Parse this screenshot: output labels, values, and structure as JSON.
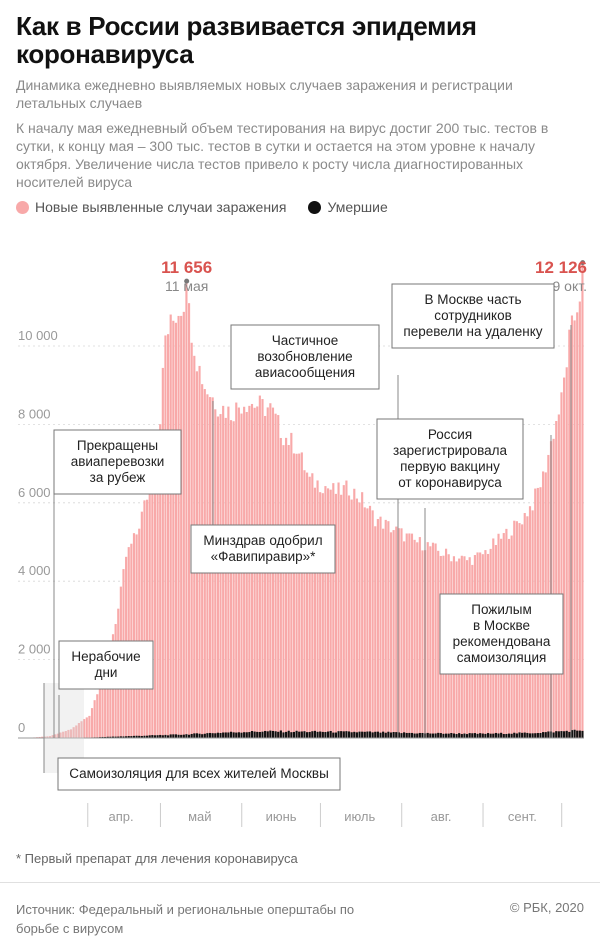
{
  "header": {
    "title": "Как в России развивается эпидемия коронавируса",
    "subtitle": "Динамика ежедневно выявляемых новых случаев заражения и регистрации летальных случаев",
    "note": "К началу мая ежедневный объем тестирования на вирус достиг 200 тыс. тестов в сутки, к концу мая – 300 тыс. тестов в сутки и остается на этом уровне к началу октября. Увеличение числа тестов привело к росту числа диагностированных носителей вируса"
  },
  "legend": {
    "cases_label": "Новые выявленные случаи заражения",
    "deaths_label": "Умершие"
  },
  "footer": {
    "footnote": "* Первый препарат для лечения коронавируса",
    "source": "Источник: Федеральный и региональные оперштабы по борьбе с вирусом",
    "copyright": "© РБК, 2020"
  },
  "colors": {
    "cases": "#f8a9a9",
    "deaths": "#111111",
    "highlight": "#d9534f"
  },
  "chart_data": {
    "type": "bar",
    "x_range": [
      "2020-03-12",
      "2020-10-09"
    ],
    "ylim": [
      0,
      12500
    ],
    "y_ticks": [
      {
        "value": 0,
        "label": "0"
      },
      {
        "value": 2000,
        "label": "2 000"
      },
      {
        "value": 4000,
        "label": "4 000"
      },
      {
        "value": 6000,
        "label": "6 000"
      },
      {
        "value": 8000,
        "label": "8 000"
      },
      {
        "value": 10000,
        "label": "10 000"
      }
    ],
    "month_labels": [
      {
        "date": "2020-04-16",
        "label": "апр."
      },
      {
        "date": "2020-05-16",
        "label": "май"
      },
      {
        "date": "2020-06-16",
        "label": "июнь"
      },
      {
        "date": "2020-07-16",
        "label": "июль"
      },
      {
        "date": "2020-08-16",
        "label": "авг."
      },
      {
        "date": "2020-09-16",
        "label": "сент."
      }
    ],
    "series": [
      {
        "name": "Новые выявленные случаи заражения",
        "values": [
          {
            "date": "2020-03-12",
            "value": 5
          },
          {
            "date": "2020-03-20",
            "value": 50
          },
          {
            "date": "2020-03-28",
            "value": 230
          },
          {
            "date": "2020-04-04",
            "value": 600
          },
          {
            "date": "2020-04-10",
            "value": 1800
          },
          {
            "date": "2020-04-15",
            "value": 3400
          },
          {
            "date": "2020-04-18",
            "value": 4800
          },
          {
            "date": "2020-04-22",
            "value": 5400
          },
          {
            "date": "2020-04-26",
            "value": 6400
          },
          {
            "date": "2020-04-30",
            "value": 7500
          },
          {
            "date": "2020-05-03",
            "value": 10600
          },
          {
            "date": "2020-05-07",
            "value": 11200
          },
          {
            "date": "2020-05-11",
            "value": 11656
          },
          {
            "date": "2020-05-15",
            "value": 10000
          },
          {
            "date": "2020-05-18",
            "value": 9300
          },
          {
            "date": "2020-05-23",
            "value": 8800
          },
          {
            "date": "2020-05-28",
            "value": 8600
          },
          {
            "date": "2020-06-02",
            "value": 8900
          },
          {
            "date": "2020-06-07",
            "value": 8800
          },
          {
            "date": "2020-06-12",
            "value": 8700
          },
          {
            "date": "2020-06-17",
            "value": 8000
          },
          {
            "date": "2020-06-22",
            "value": 7700
          },
          {
            "date": "2020-06-27",
            "value": 6800
          },
          {
            "date": "2020-07-02",
            "value": 6700
          },
          {
            "date": "2020-07-07",
            "value": 6500
          },
          {
            "date": "2020-07-12",
            "value": 6600
          },
          {
            "date": "2020-07-17",
            "value": 6300
          },
          {
            "date": "2020-07-22",
            "value": 5800
          },
          {
            "date": "2020-07-27",
            "value": 5600
          },
          {
            "date": "2020-08-01",
            "value": 5400
          },
          {
            "date": "2020-08-06",
            "value": 5200
          },
          {
            "date": "2020-08-11",
            "value": 5100
          },
          {
            "date": "2020-08-16",
            "value": 4900
          },
          {
            "date": "2020-08-21",
            "value": 4800
          },
          {
            "date": "2020-08-26",
            "value": 4700
          },
          {
            "date": "2020-08-31",
            "value": 4800
          },
          {
            "date": "2020-09-05",
            "value": 5100
          },
          {
            "date": "2020-09-10",
            "value": 5400
          },
          {
            "date": "2020-09-15",
            "value": 5700
          },
          {
            "date": "2020-09-20",
            "value": 6200
          },
          {
            "date": "2020-09-24",
            "value": 6900
          },
          {
            "date": "2020-09-28",
            "value": 8100
          },
          {
            "date": "2020-10-01",
            "value": 8900
          },
          {
            "date": "2020-10-04",
            "value": 10500
          },
          {
            "date": "2020-10-06",
            "value": 11100
          },
          {
            "date": "2020-10-09",
            "value": 12126
          }
        ]
      },
      {
        "name": "Умершие",
        "values": [
          {
            "date": "2020-03-12",
            "value": 0
          },
          {
            "date": "2020-04-01",
            "value": 5
          },
          {
            "date": "2020-04-20",
            "value": 50
          },
          {
            "date": "2020-05-10",
            "value": 90
          },
          {
            "date": "2020-05-25",
            "value": 140
          },
          {
            "date": "2020-06-10",
            "value": 170
          },
          {
            "date": "2020-07-01",
            "value": 160
          },
          {
            "date": "2020-07-20",
            "value": 150
          },
          {
            "date": "2020-08-10",
            "value": 120
          },
          {
            "date": "2020-09-01",
            "value": 110
          },
          {
            "date": "2020-09-20",
            "value": 130
          },
          {
            "date": "2020-10-09",
            "value": 200
          }
        ]
      }
    ],
    "peaks": [
      {
        "date": "2020-05-11",
        "value": 11656,
        "value_label": "11 656",
        "date_label": "11 мая"
      },
      {
        "date": "2020-10-09",
        "value": 12126,
        "value_label": "12 126",
        "date_label": "9 окт."
      }
    ],
    "annotations": [
      {
        "id": "flights",
        "date": "2020-03-27",
        "value": 7400,
        "text": "Прекращены авиаперевозки за рубеж"
      },
      {
        "id": "nonwork",
        "date": "2020-03-28",
        "value": 1150,
        "text": "Нерабочие дни"
      },
      {
        "id": "selfiso",
        "date": "2020-03-30",
        "value": 1300,
        "text": "Самоизоляция для всех жителей Москвы"
      },
      {
        "id": "favipiravir",
        "date": "2020-05-30",
        "value": 8800,
        "text": "Минздрав одобрил «Фавипиравир»*"
      },
      {
        "id": "flights-resume",
        "date": "2020-08-01",
        "value": 5400,
        "text": "Частичное возобновление авиасообщения"
      },
      {
        "id": "vaccine",
        "date": "2020-08-11",
        "value": 5100,
        "text": "Россия зарегистрировала первую вакцину от коронавируса"
      },
      {
        "id": "elderly",
        "date": "2020-09-28",
        "value": 8100,
        "text": "Пожилым в Москве рекомендована самоизоляция"
      },
      {
        "id": "remote",
        "date": "2020-10-05",
        "value": 10800,
        "text": "В Москве часть сотрудников перевели на удаленку"
      }
    ]
  }
}
